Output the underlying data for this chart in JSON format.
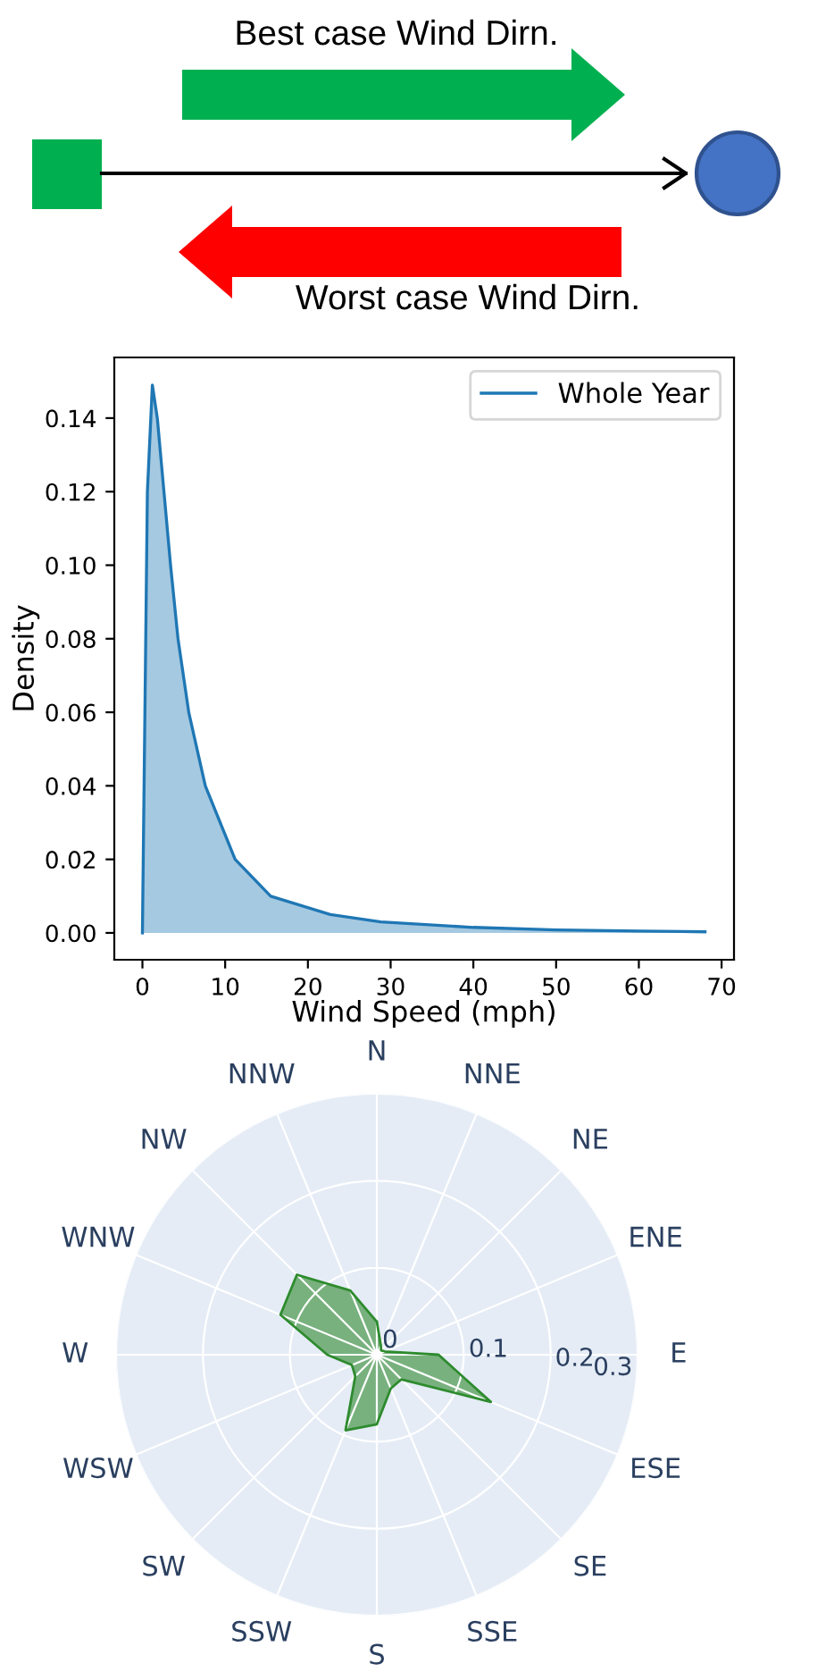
{
  "chart_data": [
    {
      "type": "other",
      "annotations": [
        "Best case Wind Dirn.",
        "Worst case Wind Dirn."
      ]
    },
    {
      "type": "area",
      "xlabel": "Wind Speed (mph)",
      "ylabel": "Density",
      "legend": "top right",
      "series": [
        {
          "name": "Whole Year",
          "color": "#1f77b4",
          "x": [
            0,
            0.3,
            0.6,
            1.2,
            1.8,
            2.6,
            3.4,
            4.3,
            5.6,
            7.6,
            11.2,
            15.5,
            22.7,
            28.8,
            40,
            50,
            60,
            68
          ],
          "values": [
            0,
            0.06,
            0.12,
            0.149,
            0.14,
            0.12,
            0.1,
            0.08,
            0.06,
            0.04,
            0.02,
            0.01,
            0.005,
            0.003,
            0.0015,
            0.0008,
            0.0005,
            0.0003
          ]
        }
      ],
      "xlim": [
        -3.4,
        71.5
      ],
      "xticks": [
        0,
        10,
        20,
        30,
        40,
        50,
        60,
        70
      ],
      "ylim": [
        -0.0073,
        0.1565
      ],
      "yticks": [
        {
          "value": 0,
          "label": "0.00"
        },
        {
          "value": 0.02,
          "label": "0.02"
        },
        {
          "value": 0.04,
          "label": "0.04"
        },
        {
          "value": 0.06,
          "label": "0.06"
        },
        {
          "value": 0.08,
          "label": "0.08"
        },
        {
          "value": 0.1,
          "label": "0.10"
        },
        {
          "value": 0.12,
          "label": "0.12"
        },
        {
          "value": 0.14,
          "label": "0.14"
        }
      ]
    },
    {
      "type": "radar",
      "categories": [
        "N",
        "NNE",
        "NE",
        "ENE",
        "E",
        "ESE",
        "SE",
        "SSE",
        "S",
        "SSW",
        "SW",
        "WSW",
        "W",
        "WNW",
        "NW",
        "NNW"
      ],
      "series": [
        {
          "color": "#2e8b2e",
          "values": [
            0.038,
            0.012,
            0.007,
            0.01,
            0.071,
            0.142,
            0.04,
            0.042,
            0.08,
            0.094,
            0.035,
            0.031,
            0.057,
            0.12,
            0.13,
            0.08
          ]
        }
      ],
      "ylim": [
        0,
        0.3
      ],
      "yticks": [
        0,
        0.1,
        0.2,
        0.3
      ]
    }
  ]
}
